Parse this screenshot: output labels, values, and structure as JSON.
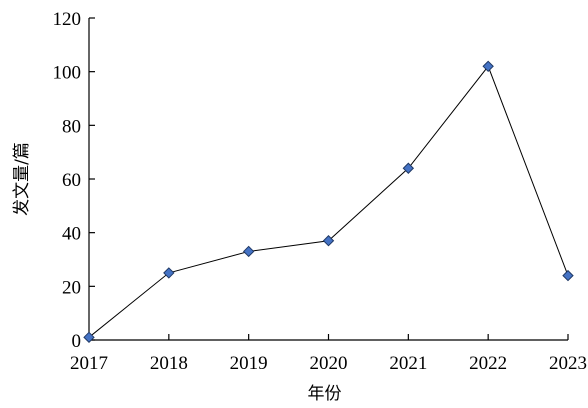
{
  "chart_data": {
    "type": "line",
    "title": "",
    "xlabel": "年份",
    "ylabel": "发文量/篇",
    "categories": [
      "2017",
      "2018",
      "2019",
      "2020",
      "2021",
      "2022",
      "2023"
    ],
    "series": [
      {
        "values": [
          1,
          25,
          33,
          37,
          64,
          102,
          24
        ]
      }
    ],
    "ylim": [
      0,
      120
    ],
    "yticks": [
      0,
      20,
      40,
      60,
      80,
      100,
      120
    ],
    "grid": false,
    "legend": "none",
    "marker": "diamond",
    "colors": {
      "line": "#000000",
      "marker_fill": "#4472C4",
      "marker_stroke": "#1F3864"
    }
  }
}
